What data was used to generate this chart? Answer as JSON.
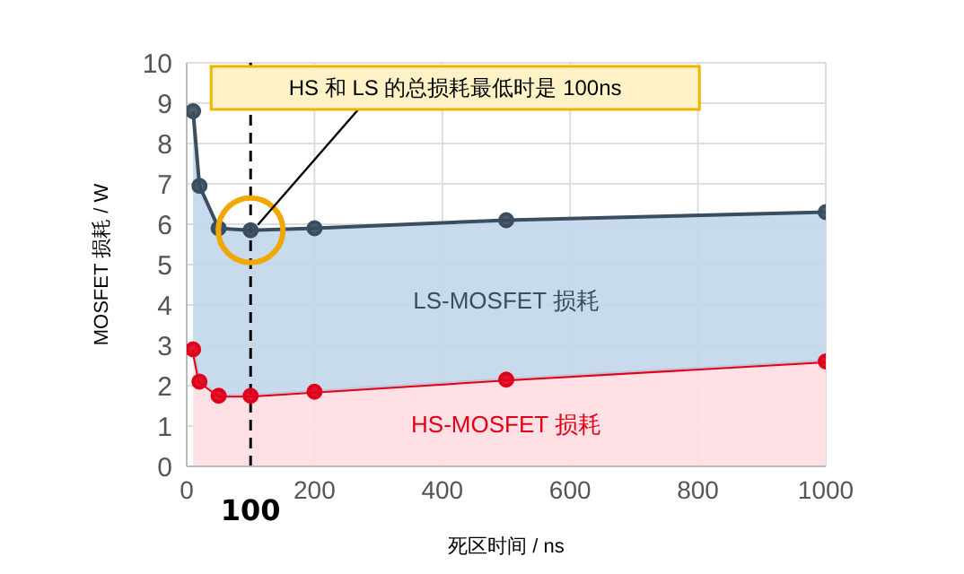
{
  "chart_data": {
    "type": "area",
    "stacked": true,
    "xlabel": "死区时间 / ns",
    "ylabel": "MOSFET 损耗 / W",
    "x": [
      10,
      20,
      50,
      100,
      200,
      500,
      1000
    ],
    "series": [
      {
        "name": "HS-MOSFET 损耗",
        "color": "#ffdde1",
        "values": [
          2.9,
          2.1,
          1.75,
          1.75,
          1.85,
          2.15,
          2.6
        ]
      },
      {
        "name": "LS-MOSFET 损耗",
        "color": "#c1d7ea",
        "values": [
          5.9,
          4.85,
          4.15,
          4.1,
          4.05,
          3.95,
          3.7
        ]
      }
    ],
    "xlim": [
      0,
      1000
    ],
    "xticks": [
      0,
      200,
      400,
      600,
      800,
      1000
    ],
    "ylim": [
      0,
      10
    ],
    "yticks": [
      0,
      1,
      2,
      3,
      4,
      5,
      6,
      7,
      8,
      9,
      10
    ],
    "grid": true,
    "marker": "circle",
    "line_style": "solid",
    "ref_lines": [
      {
        "axis": "x",
        "value": 100,
        "label": "100",
        "line_style": "dashed",
        "color": "#000000"
      }
    ],
    "annotations": [
      {
        "text": "HS 和 LS 的总损耗最低时是 100ns",
        "x": 100,
        "y": 5.85
      }
    ]
  }
}
